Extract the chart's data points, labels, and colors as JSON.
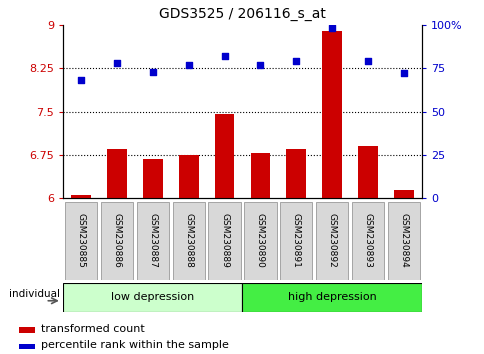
{
  "title": "GDS3525 / 206116_s_at",
  "samples": [
    "GSM230885",
    "GSM230886",
    "GSM230887",
    "GSM230888",
    "GSM230889",
    "GSM230890",
    "GSM230891",
    "GSM230892",
    "GSM230893",
    "GSM230894"
  ],
  "bar_values": [
    6.05,
    6.85,
    6.68,
    6.75,
    7.45,
    6.78,
    6.85,
    8.9,
    6.9,
    6.15
  ],
  "dot_values_pct": [
    68,
    78,
    73,
    77,
    82,
    77,
    79,
    98,
    79,
    72
  ],
  "ylim_left": [
    6.0,
    9.0
  ],
  "ylim_right": [
    0,
    100
  ],
  "yticks_left": [
    6.0,
    6.75,
    7.5,
    8.25,
    9.0
  ],
  "yticks_right": [
    0,
    25,
    50,
    75,
    100
  ],
  "ytick_labels_left": [
    "6",
    "6.75",
    "7.5",
    "8.25",
    "9"
  ],
  "ytick_labels_right": [
    "0",
    "25",
    "50",
    "75",
    "100%"
  ],
  "hlines": [
    6.75,
    7.5,
    8.25
  ],
  "bar_color": "#cc0000",
  "dot_color": "#0000cc",
  "group1_label": "low depression",
  "group2_label": "high depression",
  "group1_split": 4.5,
  "group1_color": "#ccffcc",
  "group2_color": "#44ee44",
  "legend_bar_label": "transformed count",
  "legend_dot_label": "percentile rank within the sample",
  "individual_label": "individual",
  "bar_bottom": 6.0,
  "tick_bg_color": "#d8d8d8",
  "left_axis_color": "#cc0000",
  "right_axis_color": "#0000cc"
}
